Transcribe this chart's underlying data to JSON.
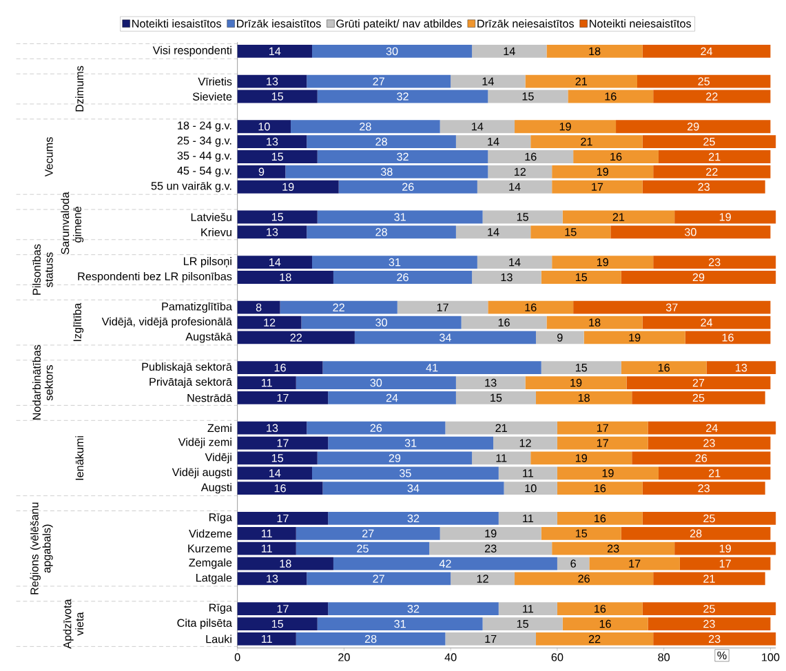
{
  "chart_data": {
    "type": "bar",
    "orientation": "horizontal",
    "stacked": true,
    "data_labels": true,
    "legend": "top",
    "xlabel": "%",
    "categories": [
      "Visi respondenti",
      null,
      "Vīrietis",
      "Sieviete",
      null,
      "18 - 24 g.v.",
      "25 - 34 g.v.",
      "35 - 44 g.v.",
      "45 - 54 g.v.",
      "55 un vairāk g.v.",
      null,
      "Latviešu",
      "Krievu",
      null,
      "LR pilsoņi",
      "Respondenti bez LR pilsonības",
      null,
      "Pamatizglītība",
      "Vidējā, vidējā profesionālā",
      "Augstākā",
      null,
      "Publiskajā sektorā",
      "Privātajā sektorā",
      "Nestrādā",
      null,
      "Zemi",
      "Vidēji zemi",
      "Vidēji",
      "Vidēji augsti",
      "Augsti",
      null,
      "Rīga",
      "Vidzeme",
      "Kurzeme",
      "Zemgale",
      "Latgale",
      null,
      "Rīga",
      "Cita pilsēta",
      "Lauki"
    ],
    "series": [
      {
        "name": "Noteikti iesaistītos",
        "color": "#141b6e",
        "values": [
          14,
          null,
          13,
          15,
          null,
          10,
          13,
          15,
          9,
          19,
          null,
          15,
          13,
          null,
          14,
          18,
          null,
          8,
          12,
          22,
          null,
          16,
          11,
          17,
          null,
          13,
          17,
          15,
          14,
          16,
          null,
          17,
          11,
          11,
          18,
          13,
          null,
          17,
          15,
          11
        ]
      },
      {
        "name": "Drīzāk iesaistītos",
        "color": "#4a74c4",
        "values": [
          30,
          null,
          27,
          32,
          null,
          28,
          28,
          32,
          38,
          26,
          null,
          31,
          28,
          null,
          31,
          26,
          null,
          22,
          30,
          34,
          null,
          41,
          30,
          24,
          null,
          26,
          31,
          29,
          35,
          34,
          null,
          32,
          27,
          25,
          42,
          27,
          null,
          32,
          31,
          28
        ]
      },
      {
        "name": "Grūti pateikt/ nav atbildes",
        "color": "#c3c3c3",
        "values": [
          14,
          null,
          14,
          15,
          null,
          14,
          14,
          16,
          12,
          14,
          null,
          15,
          14,
          null,
          14,
          13,
          null,
          17,
          16,
          9,
          null,
          15,
          13,
          15,
          null,
          21,
          12,
          11,
          11,
          10,
          null,
          11,
          19,
          23,
          6,
          12,
          null,
          11,
          15,
          17
        ]
      },
      {
        "name": "Drīzāk neiesaistītos",
        "color": "#f0962e",
        "values": [
          18,
          null,
          21,
          16,
          null,
          19,
          21,
          16,
          19,
          17,
          null,
          21,
          15,
          null,
          19,
          15,
          null,
          16,
          18,
          19,
          null,
          16,
          19,
          18,
          null,
          17,
          17,
          19,
          19,
          16,
          null,
          16,
          15,
          23,
          17,
          26,
          null,
          16,
          16,
          22
        ]
      },
      {
        "name": "Noteikti neiesaistītos",
        "color": "#e05a00",
        "values": [
          24,
          null,
          25,
          22,
          null,
          29,
          25,
          21,
          22,
          23,
          null,
          19,
          30,
          null,
          23,
          29,
          null,
          37,
          24,
          16,
          null,
          13,
          27,
          25,
          null,
          24,
          23,
          26,
          21,
          23,
          null,
          25,
          28,
          19,
          17,
          21,
          null,
          25,
          23,
          23
        ]
      }
    ],
    "xlim": [
      0,
      101
    ],
    "xticks": [
      0,
      20,
      40,
      60,
      80,
      100
    ],
    "annotations": [
      "Dzimums",
      "Vecums",
      "Sarunvaloda ģimenē",
      "Pilsonības statuss",
      "Izglītība",
      "Nodarbinātības sektors",
      "Ienākumi",
      "Reģions (vēlēšanu apgabals)",
      "Apdzīvota vieta"
    ]
  }
}
